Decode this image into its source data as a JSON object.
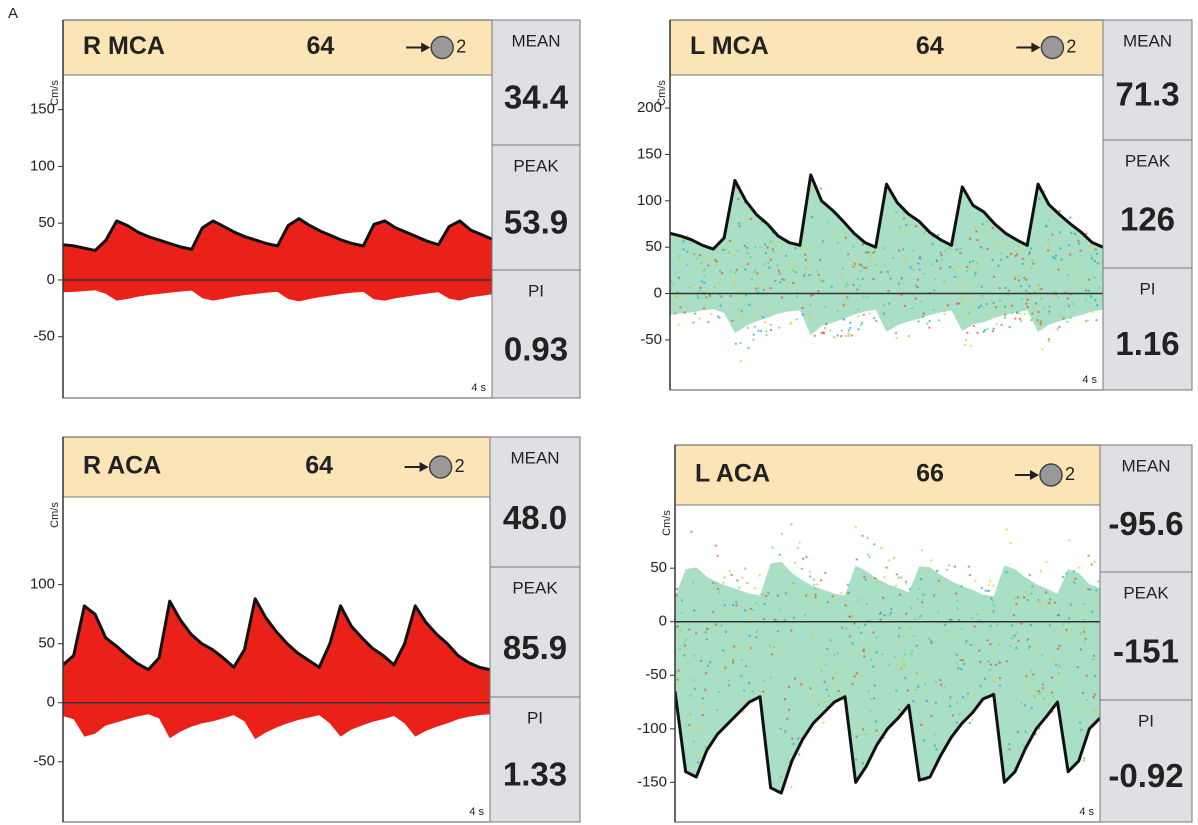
{
  "figure_label": "A",
  "panels": [
    {
      "vessel": "R MCA",
      "depth": "64",
      "gate": "2",
      "units": "Cm/s",
      "duration": "4 s",
      "spectrum_color": "#e8150c",
      "ylim": [
        -104,
        229
      ],
      "yticks": [
        -50,
        0,
        50,
        100,
        150
      ],
      "envelope": [
        31,
        30,
        28,
        26,
        35,
        52,
        48,
        42,
        38,
        35,
        32,
        29,
        27,
        46,
        52,
        47,
        42,
        38,
        35,
        32,
        30,
        48,
        54,
        48,
        43,
        39,
        35,
        32,
        30,
        49,
        52,
        46,
        42,
        38,
        34,
        31,
        47,
        52,
        44,
        40,
        36
      ],
      "metrics": [
        {
          "label": "MEAN",
          "value": "34.4"
        },
        {
          "label": "PEAK",
          "value": "53.9"
        },
        {
          "label": "PI",
          "value": "0.93"
        }
      ]
    },
    {
      "vessel": "L MCA",
      "depth": "64",
      "gate": "2",
      "units": "Cm/s",
      "duration": "4 s",
      "spectrum_color": "#52bf8c",
      "ylim": [
        -104,
        295
      ],
      "yticks": [
        -50,
        0,
        50,
        100,
        150,
        200
      ],
      "envelope": [
        65,
        62,
        58,
        52,
        48,
        60,
        122,
        100,
        85,
        75,
        62,
        55,
        52,
        128,
        100,
        90,
        78,
        65,
        55,
        50,
        118,
        98,
        86,
        78,
        66,
        58,
        52,
        115,
        95,
        88,
        75,
        65,
        58,
        52,
        118,
        96,
        85,
        75,
        66,
        55,
        50
      ],
      "metrics": [
        {
          "label": "MEAN",
          "value": "71.3"
        },
        {
          "label": "PEAK",
          "value": "126"
        },
        {
          "label": "PI",
          "value": "1.16"
        }
      ]
    },
    {
      "vessel": "R ACA",
      "depth": "64",
      "gate": "2",
      "units": "Cm/s",
      "duration": "4 s",
      "spectrum_color": "#e8150c",
      "ylim": [
        -101,
        225
      ],
      "yticks": [
        -50,
        0,
        50,
        100
      ],
      "envelope": [
        32,
        40,
        82,
        75,
        55,
        48,
        40,
        33,
        28,
        38,
        86,
        70,
        58,
        50,
        45,
        38,
        30,
        45,
        88,
        72,
        60,
        50,
        42,
        36,
        30,
        50,
        82,
        65,
        55,
        46,
        40,
        32,
        50,
        82,
        68,
        58,
        50,
        40,
        34,
        30,
        28
      ],
      "metrics": [
        {
          "label": "MEAN",
          "value": "48.0"
        },
        {
          "label": "PEAK",
          "value": "85.9"
        },
        {
          "label": "PI",
          "value": "1.33"
        }
      ]
    },
    {
      "vessel": "L ACA",
      "depth": "66",
      "gate": "2",
      "units": "Cm/s",
      "duration": "4 s",
      "spectrum_color": "#52bf8c",
      "ylim": [
        -187,
        165
      ],
      "yticks": [
        -150,
        -100,
        -50,
        0,
        50
      ],
      "envelope": [
        -65,
        -140,
        -145,
        -120,
        -105,
        -95,
        -85,
        -75,
        -70,
        -155,
        -160,
        -130,
        -110,
        -95,
        -85,
        -75,
        -70,
        -150,
        -135,
        -115,
        -100,
        -90,
        -78,
        -148,
        -145,
        -125,
        -108,
        -95,
        -85,
        -72,
        -68,
        -150,
        -140,
        -118,
        -100,
        -88,
        -75,
        -140,
        -130,
        -100,
        -90
      ],
      "metrics": [
        {
          "label": "MEAN",
          "value": "-95.6"
        },
        {
          "label": "PEAK",
          "value": "-151"
        },
        {
          "label": "PI",
          "value": "-0.92"
        }
      ]
    }
  ]
}
